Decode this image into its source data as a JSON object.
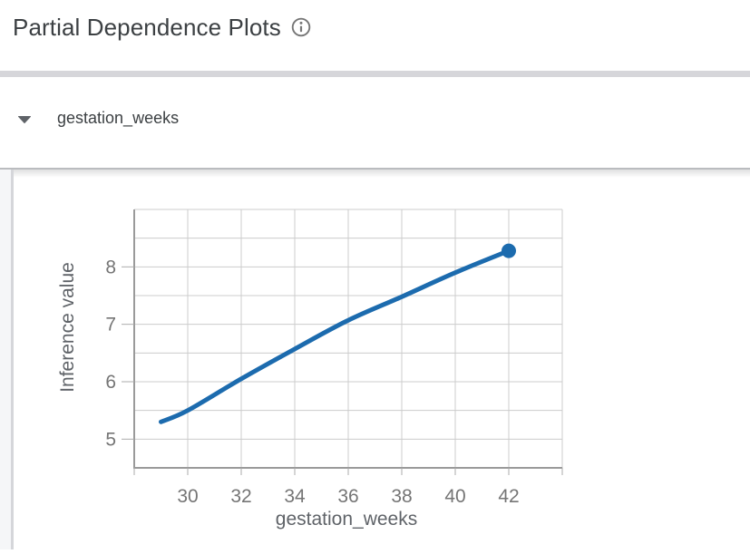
{
  "header": {
    "title": "Partial Dependence Plots",
    "info_icon": "info"
  },
  "feature_section": {
    "label": "gestation_weeks",
    "state": "expanded",
    "collapse_icon": "caret-down"
  },
  "chart_data": {
    "type": "line",
    "title": "",
    "xlabel": "gestation_weeks",
    "ylabel": "Inference value",
    "x": [
      29,
      30,
      32,
      34,
      36,
      38,
      40,
      42
    ],
    "y": [
      5.3,
      5.5,
      6.05,
      6.57,
      7.07,
      7.48,
      7.9,
      8.28
    ],
    "xlim": [
      28,
      44
    ],
    "ylim": [
      4.5,
      9.0
    ],
    "xticks": [
      30,
      32,
      34,
      36,
      38,
      40,
      42
    ],
    "yticks": [
      5,
      6,
      7,
      8
    ],
    "x_grid_step": 2,
    "y_grid_step": 0.5,
    "grid": true,
    "legend": "none",
    "line_color": "#1c6bae",
    "endpoint_marker": {
      "x": 42,
      "y": 8.28
    }
  },
  "colors": {
    "title_text": "#3c4043",
    "section_text": "#3c4043",
    "tick_text": "#757575",
    "axis_title_text": "#5f6368",
    "gridline": "#cccccc",
    "axis_line": "#9a9a9a",
    "tick_mark": "#ababab",
    "divider_thick": "#d6d6da",
    "divider_thin": "#babcbf",
    "gutter_bg": "#f5f6f8",
    "scrollbar": "#d5d6da",
    "icon_gray": "#767676"
  }
}
